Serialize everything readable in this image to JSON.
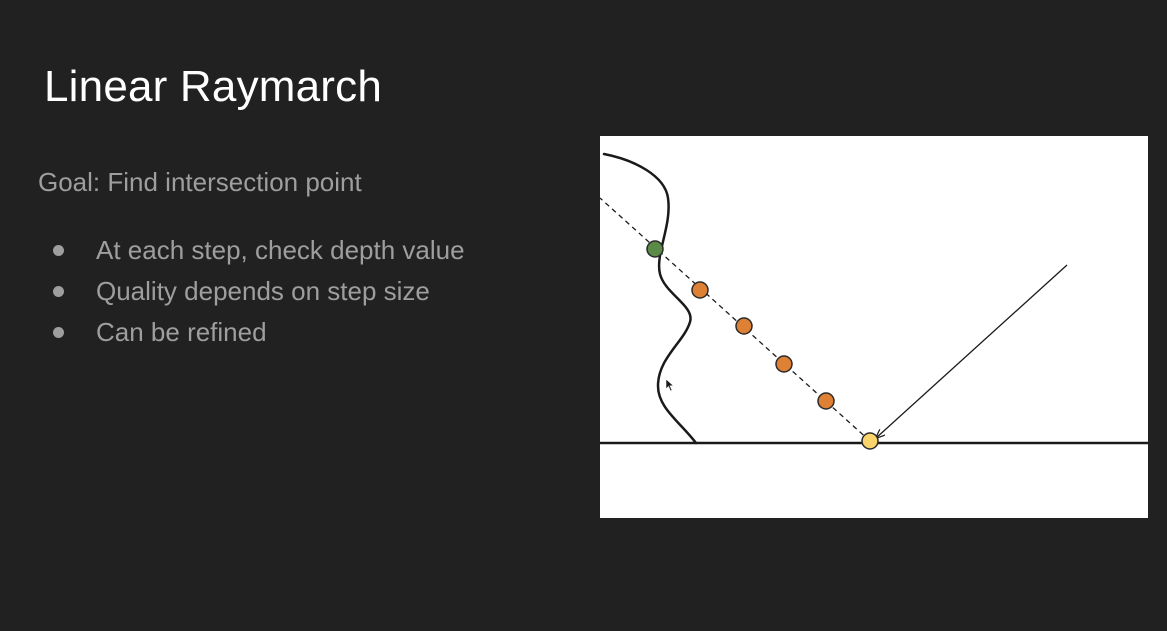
{
  "slide": {
    "title": "Linear Raymarch",
    "subtitle": "Goal: Find intersection point",
    "bullets": [
      "At each step, check depth value",
      "Quality depends on step size",
      "Can be refined"
    ]
  },
  "diagram": {
    "march_steps": [
      {
        "kind": "hit",
        "color": "#5a8a45"
      },
      {
        "kind": "step",
        "color": "#df8135"
      },
      {
        "kind": "step",
        "color": "#df8135"
      },
      {
        "kind": "step",
        "color": "#df8135"
      },
      {
        "kind": "step",
        "color": "#df8135"
      },
      {
        "kind": "origin",
        "color": "#fbd46b"
      }
    ]
  },
  "colors": {
    "background": "#212121",
    "title": "#ffffff",
    "body_text": "#9e9e9e",
    "hit_point": "#5a8a45",
    "step_point": "#df8135",
    "origin_point": "#fbd46b"
  }
}
